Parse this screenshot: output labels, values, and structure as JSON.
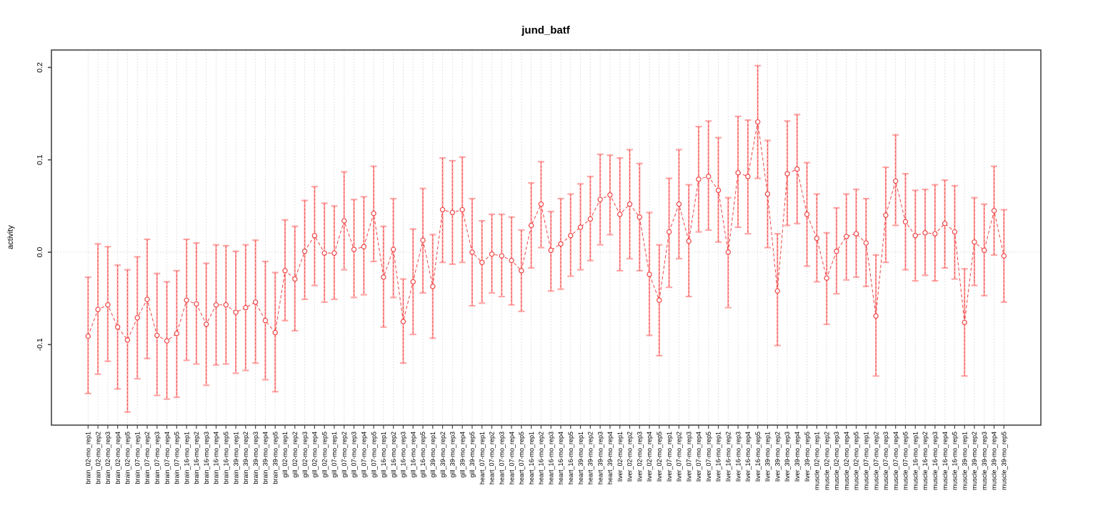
{
  "figure": {
    "title": "jund_batf",
    "y_axis_label": "activity",
    "colors": {
      "point_and_line": "#ef4444",
      "error_bar": "#ffa6a6",
      "grid": "#d9d9d9",
      "axis_box": "#454545",
      "text": "#000000",
      "background": "#ffffff"
    }
  },
  "chart_data": {
    "type": "scatter",
    "title": "jund_batf",
    "xlabel": "",
    "ylabel": "activity",
    "ylim": [
      -0.19,
      0.215
    ],
    "ytick_values": [
      -0.1,
      0.0,
      0.1,
      0.2
    ],
    "ytick_labels": [
      "-0.1",
      "0.0",
      "0.1",
      "0.2"
    ],
    "grid": "dotted vertical line per category; dotted horizontal line at y=0",
    "legend": "none",
    "marker": "open-circle",
    "line_style": "dashed",
    "error_bars": true,
    "categories": [
      "brain_02-mo_rep1",
      "brain_02-mo_rep2",
      "brain_02-mo_rep3",
      "brain_02-mo_rep4",
      "brain_02-mo_rep5",
      "brain_07-mo_rep1",
      "brain_07-mo_rep2",
      "brain_07-mo_rep3",
      "brain_07-mo_rep4",
      "brain_07-mo_rep5",
      "brain_16-mo_rep1",
      "brain_16-mo_rep2",
      "brain_16-mo_rep3",
      "brain_16-mo_rep4",
      "brain_16-mo_rep5",
      "brain_39-mo_rep1",
      "brain_39-mo_rep2",
      "brain_39-mo_rep3",
      "brain_39-mo_rep4",
      "brain_39-mo_rep5",
      "gill_02-mo_rep1",
      "gill_02-mo_rep2",
      "gill_02-mo_rep3",
      "gill_02-mo_rep4",
      "gill_02-mo_rep5",
      "gill_07-mo_rep1",
      "gill_07-mo_rep2",
      "gill_07-mo_rep3",
      "gill_07-mo_rep4",
      "gill_07-mo_rep5",
      "gill_16-mo_rep1",
      "gill_16-mo_rep2",
      "gill_16-mo_rep3",
      "gill_16-mo_rep4",
      "gill_16-mo_rep5",
      "gill_39-mo_rep1",
      "gill_39-mo_rep2",
      "gill_39-mo_rep3",
      "gill_39-mo_rep4",
      "gill_39-mo_rep5",
      "heart_07-mo_rep1",
      "heart_07-mo_rep2",
      "heart_07-mo_rep3",
      "heart_07-mo_rep4",
      "heart_07-mo_rep5",
      "heart_16-mo_rep1",
      "heart_16-mo_rep2",
      "heart_16-mo_rep3",
      "heart_16-mo_rep4",
      "heart_16-mo_rep5",
      "heart_39-mo_rep1",
      "heart_39-mo_rep2",
      "heart_39-mo_rep3",
      "heart_39-mo_rep4",
      "liver_02-mo_rep1",
      "liver_02-mo_rep2",
      "liver_02-mo_rep3",
      "liver_02-mo_rep4",
      "liver_02-mo_rep5",
      "liver_07-mo_rep1",
      "liver_07-mo_rep2",
      "liver_07-mo_rep3",
      "liver_07-mo_rep4",
      "liver_07-mo_rep5",
      "liver_16-mo_rep1",
      "liver_16-mo_rep2",
      "liver_16-mo_rep3",
      "liver_16-mo_rep4",
      "liver_16-mo_rep5",
      "liver_39-mo_rep1",
      "liver_39-mo_rep2",
      "liver_39-mo_rep3",
      "liver_39-mo_rep4",
      "liver_39-mo_rep5",
      "muscle_02-mo_rep1",
      "muscle_02-mo_rep2",
      "muscle_02-mo_rep3",
      "muscle_02-mo_rep4",
      "muscle_02-mo_rep5",
      "muscle_07-mo_rep1",
      "muscle_07-mo_rep2",
      "muscle_07-mo_rep3",
      "muscle_07-mo_rep4",
      "muscle_07-mo_rep5",
      "muscle_16-mo_rep1",
      "muscle_16-mo_rep2",
      "muscle_16-mo_rep3",
      "muscle_16-mo_rep4",
      "muscle_16-mo_rep5",
      "muscle_39-mo_rep1",
      "muscle_39-mo_rep2",
      "muscle_39-mo_rep3",
      "muscle_39-mo_rep4",
      "muscle_39-mo_rep5"
    ],
    "values": [
      -0.091,
      -0.062,
      -0.057,
      -0.081,
      -0.095,
      -0.071,
      -0.051,
      -0.09,
      -0.096,
      -0.088,
      -0.052,
      -0.056,
      -0.078,
      -0.057,
      -0.057,
      -0.065,
      -0.06,
      -0.054,
      -0.074,
      -0.087,
      -0.02,
      -0.029,
      0.001,
      0.018,
      -0.001,
      -0.001,
      0.034,
      0.003,
      0.006,
      0.042,
      -0.027,
      0.003,
      -0.075,
      -0.032,
      0.013,
      -0.037,
      0.046,
      0.043,
      0.046,
      0.0,
      -0.011,
      -0.002,
      -0.004,
      -0.009,
      -0.02,
      0.029,
      0.052,
      0.002,
      0.009,
      0.018,
      0.027,
      0.036,
      0.057,
      0.062,
      0.041,
      0.052,
      0.038,
      -0.024,
      -0.052,
      0.022,
      0.052,
      0.012,
      0.079,
      0.082,
      0.067,
      0.0,
      0.086,
      0.082,
      0.141,
      0.063,
      -0.042,
      0.085,
      0.09,
      0.041,
      0.015,
      -0.028,
      0.001,
      0.017,
      0.02,
      0.01,
      -0.069,
      0.04,
      0.077,
      0.033,
      0.018,
      0.021,
      0.02,
      0.031,
      0.022,
      -0.076,
      0.011,
      0.002,
      0.045,
      -0.004
    ],
    "error_high": [
      -0.027,
      0.009,
      0.006,
      -0.014,
      -0.019,
      -0.005,
      0.014,
      -0.023,
      -0.032,
      -0.02,
      0.014,
      0.01,
      -0.012,
      0.008,
      0.007,
      0.001,
      0.008,
      0.013,
      -0.01,
      -0.022,
      0.035,
      0.028,
      0.056,
      0.071,
      0.053,
      0.05,
      0.087,
      0.057,
      0.06,
      0.093,
      0.028,
      0.058,
      -0.029,
      0.025,
      0.069,
      0.019,
      0.102,
      0.099,
      0.103,
      0.058,
      0.034,
      0.041,
      0.041,
      0.038,
      0.024,
      0.075,
      0.098,
      0.044,
      0.058,
      0.063,
      0.074,
      0.082,
      0.106,
      0.105,
      0.102,
      0.111,
      0.096,
      0.043,
      0.008,
      0.08,
      0.111,
      0.073,
      0.136,
      0.142,
      0.124,
      0.059,
      0.147,
      0.143,
      0.202,
      0.121,
      0.02,
      0.142,
      0.149,
      0.097,
      0.063,
      0.021,
      0.048,
      0.063,
      0.068,
      0.058,
      -0.003,
      0.092,
      0.127,
      0.085,
      0.067,
      0.068,
      0.073,
      0.078,
      0.072,
      -0.018,
      0.059,
      0.052,
      0.093,
      0.046
    ],
    "error_low": [
      -0.153,
      -0.132,
      -0.118,
      -0.148,
      -0.173,
      -0.137,
      -0.115,
      -0.155,
      -0.159,
      -0.157,
      -0.117,
      -0.121,
      -0.144,
      -0.122,
      -0.121,
      -0.131,
      -0.128,
      -0.12,
      -0.138,
      -0.151,
      -0.074,
      -0.085,
      -0.051,
      -0.036,
      -0.054,
      -0.051,
      -0.019,
      -0.049,
      -0.046,
      -0.01,
      -0.081,
      -0.049,
      -0.12,
      -0.089,
      -0.044,
      -0.093,
      -0.011,
      -0.013,
      -0.011,
      -0.058,
      -0.055,
      -0.044,
      -0.048,
      -0.057,
      -0.064,
      -0.017,
      0.005,
      -0.042,
      -0.04,
      -0.026,
      -0.019,
      -0.009,
      0.008,
      0.019,
      -0.02,
      -0.007,
      -0.02,
      -0.09,
      -0.112,
      -0.038,
      -0.007,
      -0.048,
      0.022,
      0.024,
      0.011,
      -0.06,
      0.027,
      0.02,
      0.08,
      0.005,
      -0.101,
      0.029,
      0.031,
      -0.015,
      -0.032,
      -0.078,
      -0.045,
      -0.03,
      -0.027,
      -0.037,
      -0.134,
      -0.011,
      0.029,
      -0.019,
      -0.031,
      -0.025,
      -0.031,
      -0.017,
      -0.029,
      -0.134,
      -0.036,
      -0.047,
      -0.003,
      -0.054
    ]
  }
}
